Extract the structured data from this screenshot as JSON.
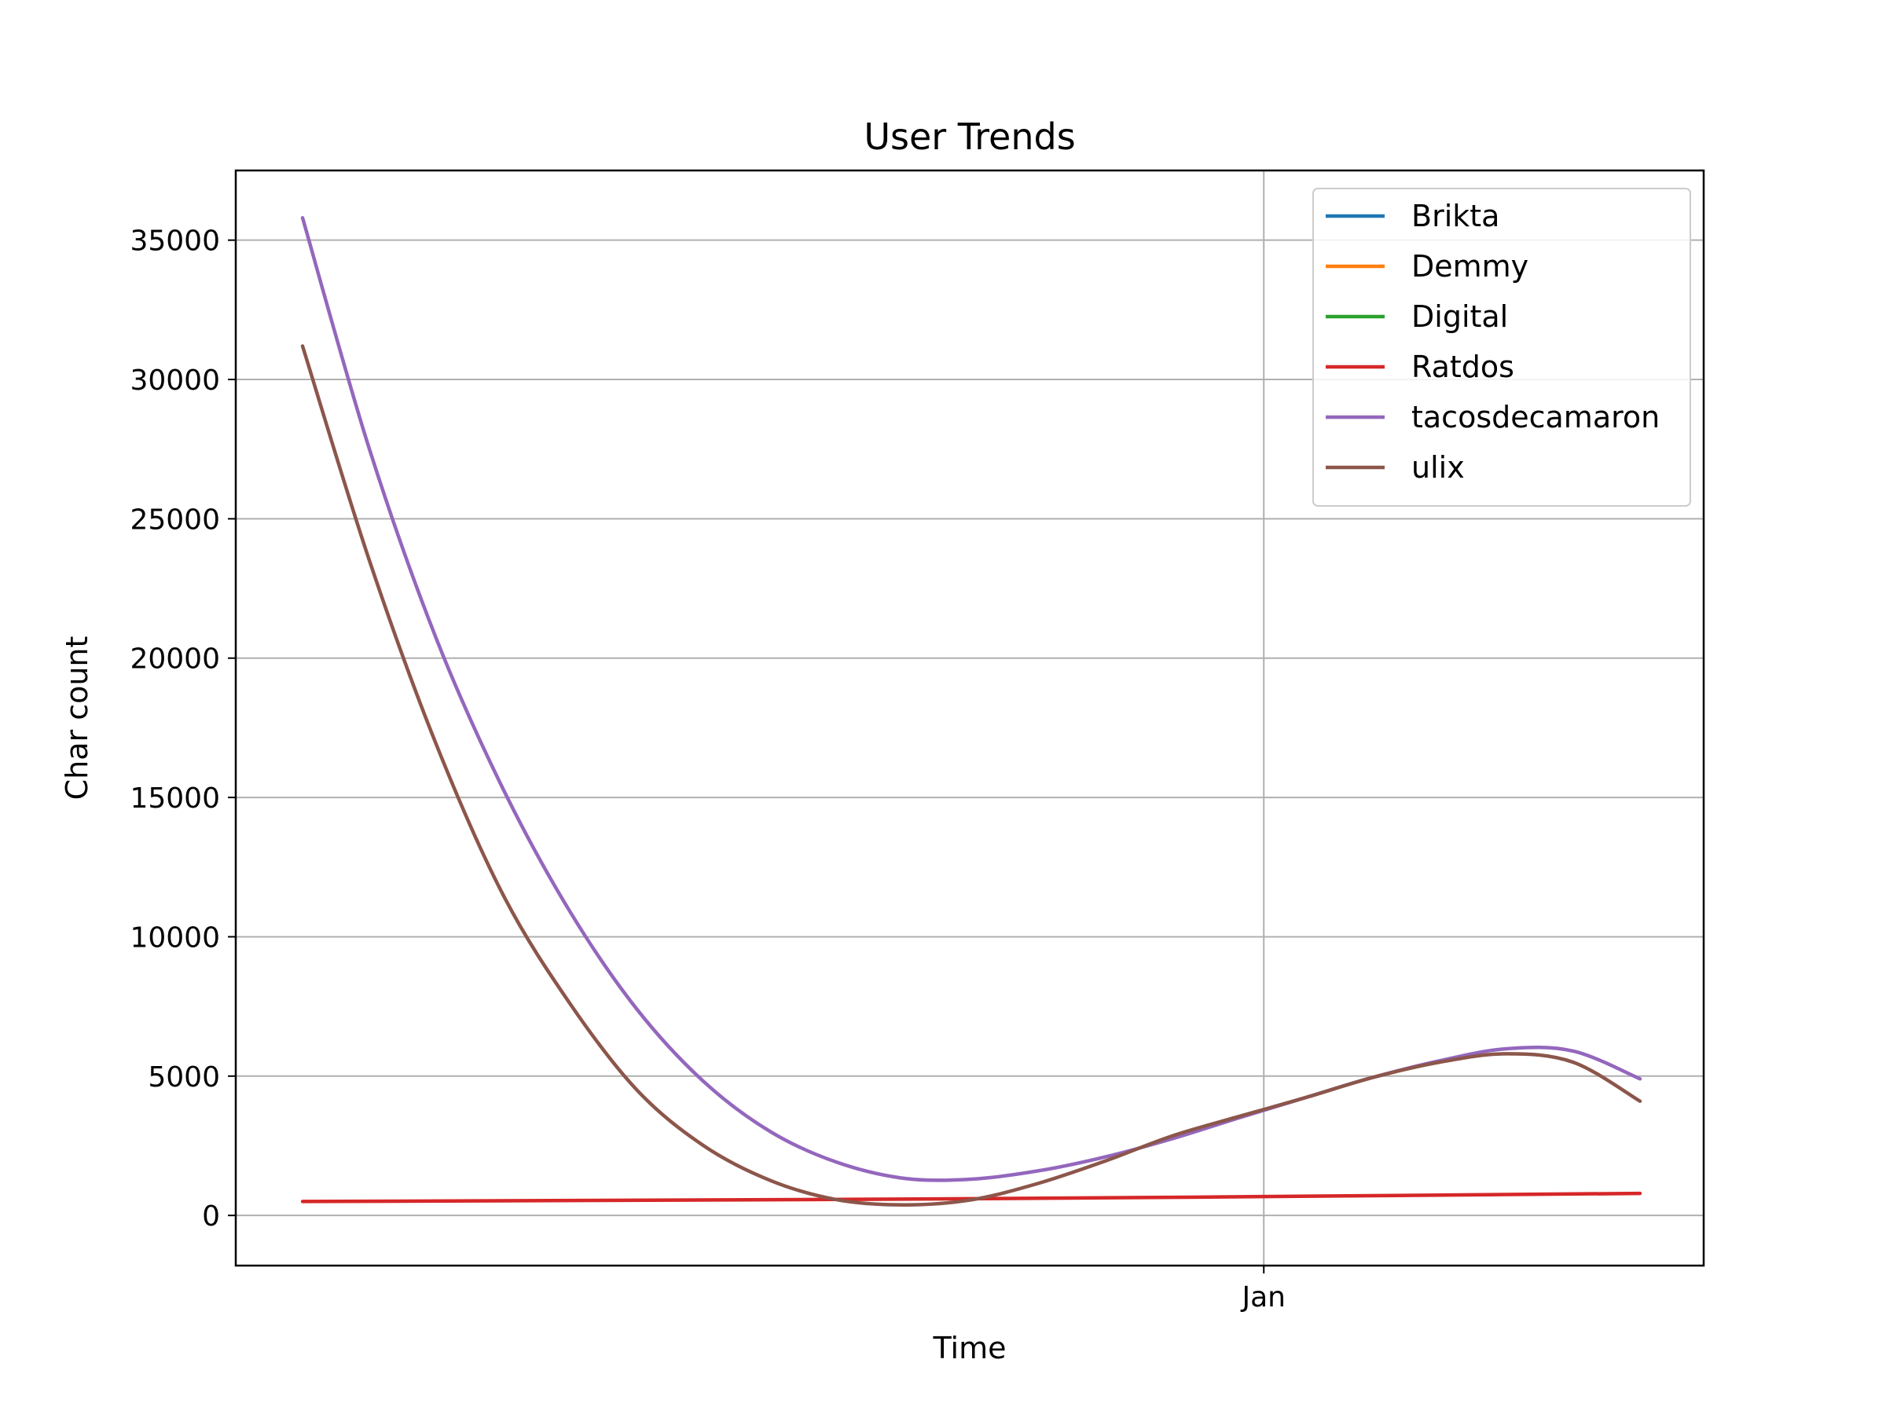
{
  "chart_data": {
    "type": "line",
    "title": "User Trends",
    "xlabel": "Time",
    "ylabel": "Char count",
    "x_ticks": [
      "Jan"
    ],
    "ylim": [
      -1800,
      37500
    ],
    "y_ticks": [
      0,
      5000,
      10000,
      15000,
      20000,
      25000,
      30000,
      35000
    ],
    "grid": true,
    "legend_position": "top-right",
    "series": [
      {
        "name": "Brikta",
        "color": "#1f77b4",
        "points": []
      },
      {
        "name": "Demmy",
        "color": "#ff7f0e",
        "points": []
      },
      {
        "name": "Digital",
        "color": "#2ca02c",
        "points": []
      },
      {
        "name": "Ratdos",
        "color": "#d62728",
        "points": [
          [
            0,
            500
          ],
          [
            0.5,
            600
          ],
          [
            1,
            790
          ]
        ]
      },
      {
        "name": "tacosdecamaron",
        "color": "#9467bd",
        "points": [
          [
            0,
            35800
          ],
          [
            0.05,
            27500
          ],
          [
            0.1,
            20700
          ],
          [
            0.15,
            15300
          ],
          [
            0.2,
            10900
          ],
          [
            0.25,
            7400
          ],
          [
            0.3,
            4800
          ],
          [
            0.35,
            3000
          ],
          [
            0.4,
            1900
          ],
          [
            0.45,
            1330
          ],
          [
            0.5,
            1300
          ],
          [
            0.55,
            1600
          ],
          [
            0.6,
            2100
          ],
          [
            0.65,
            2750
          ],
          [
            0.7,
            3500
          ],
          [
            0.75,
            4230
          ],
          [
            0.8,
            4950
          ],
          [
            0.85,
            5550
          ],
          [
            0.9,
            5980
          ],
          [
            0.95,
            5900
          ],
          [
            1,
            4900
          ]
        ]
      },
      {
        "name": "ulix",
        "color": "#8c564b",
        "points": [
          [
            0,
            31200
          ],
          [
            0.05,
            23500
          ],
          [
            0.1,
            16900
          ],
          [
            0.15,
            11500
          ],
          [
            0.2,
            7600
          ],
          [
            0.25,
            4500
          ],
          [
            0.3,
            2500
          ],
          [
            0.35,
            1250
          ],
          [
            0.4,
            560
          ],
          [
            0.45,
            380
          ],
          [
            0.5,
            560
          ],
          [
            0.55,
            1150
          ],
          [
            0.6,
            1950
          ],
          [
            0.65,
            2850
          ],
          [
            0.7,
            3550
          ],
          [
            0.75,
            4230
          ],
          [
            0.8,
            4950
          ],
          [
            0.85,
            5500
          ],
          [
            0.9,
            5800
          ],
          [
            0.95,
            5500
          ],
          [
            1,
            4100
          ]
        ]
      }
    ]
  }
}
